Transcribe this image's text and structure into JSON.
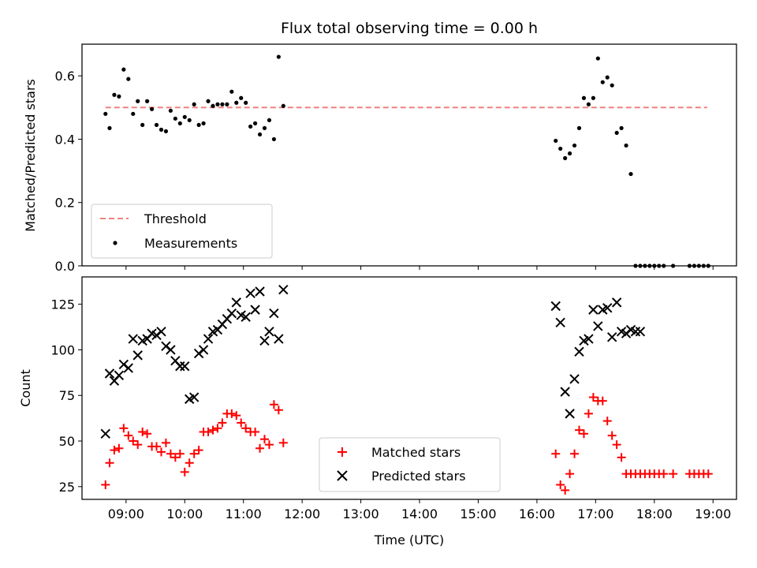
{
  "chart_data": [
    {
      "type": "scatter",
      "title": "Flux total observing time = 0.00 h",
      "xlabel": "",
      "ylabel": "Matched/Predicted stars",
      "x_unit": "hours UTC",
      "xlim": [
        8.25,
        19.4
      ],
      "ylim": [
        0.0,
        0.7
      ],
      "yticks": [
        0.0,
        0.2,
        0.4,
        0.6
      ],
      "ytick_labels": [
        "0.0",
        "0.2",
        "0.4",
        "0.6"
      ],
      "legend": "lower-left",
      "series": [
        {
          "name": "Threshold",
          "style": "dashed-line",
          "color": "#f08080",
          "x": [
            8.65,
            18.9
          ],
          "y": [
            0.5,
            0.5
          ]
        },
        {
          "name": "Measurements",
          "style": "dot",
          "color": "#000000",
          "x": [
            8.65,
            8.72,
            8.8,
            8.88,
            8.96,
            9.04,
            9.12,
            9.2,
            9.28,
            9.36,
            9.44,
            9.52,
            9.6,
            9.68,
            9.76,
            9.84,
            9.92,
            10.0,
            10.08,
            10.16,
            10.24,
            10.32,
            10.4,
            10.48,
            10.56,
            10.64,
            10.72,
            10.8,
            10.88,
            10.96,
            11.04,
            11.12,
            11.2,
            11.28,
            11.36,
            11.44,
            11.52,
            11.6,
            11.68,
            16.32,
            16.4,
            16.48,
            16.56,
            16.64,
            16.72,
            16.8,
            16.88,
            16.96,
            17.04,
            17.12,
            17.2,
            17.28,
            17.36,
            17.44,
            17.52,
            17.6,
            17.68,
            17.76,
            17.84,
            17.92,
            18.0,
            18.08,
            18.16,
            18.32,
            18.6,
            18.68,
            18.76,
            18.84,
            18.92
          ],
          "y": [
            0.48,
            0.435,
            0.54,
            0.535,
            0.62,
            0.59,
            0.48,
            0.52,
            0.445,
            0.52,
            0.495,
            0.445,
            0.43,
            0.425,
            0.49,
            0.465,
            0.45,
            0.47,
            0.46,
            0.51,
            0.445,
            0.45,
            0.52,
            0.505,
            0.51,
            0.51,
            0.51,
            0.55,
            0.515,
            0.53,
            0.515,
            0.44,
            0.45,
            0.415,
            0.435,
            0.46,
            0.4,
            0.66,
            0.505,
            0.395,
            0.37,
            0.34,
            0.355,
            0.38,
            0.435,
            0.53,
            0.51,
            0.53,
            0.655,
            0.58,
            0.595,
            0.57,
            0.42,
            0.435,
            0.38,
            0.29,
            0.0,
            0.0,
            0.0,
            0.0,
            0.0,
            0.0,
            0.0,
            0.0,
            0.0,
            0.0,
            0.0,
            0.0,
            0.0
          ]
        }
      ]
    },
    {
      "type": "scatter",
      "title": "",
      "xlabel": "Time (UTC)",
      "ylabel": "Count",
      "x_unit": "hours UTC",
      "xlim": [
        8.25,
        19.4
      ],
      "ylim": [
        18,
        140
      ],
      "xticks": [
        9,
        10,
        11,
        12,
        13,
        14,
        15,
        16,
        17,
        18,
        19
      ],
      "xtick_labels": [
        "09:00",
        "10:00",
        "11:00",
        "12:00",
        "13:00",
        "14:00",
        "15:00",
        "16:00",
        "17:00",
        "18:00",
        "19:00"
      ],
      "yticks": [
        25,
        50,
        75,
        100,
        125
      ],
      "ytick_labels": [
        "25",
        "50",
        "75",
        "100",
        "125"
      ],
      "legend": "lower-center",
      "series": [
        {
          "name": "Matched stars",
          "style": "plus",
          "color": "#ff0000",
          "x": [
            8.65,
            8.72,
            8.8,
            8.88,
            8.96,
            9.04,
            9.12,
            9.2,
            9.28,
            9.36,
            9.44,
            9.52,
            9.6,
            9.68,
            9.76,
            9.84,
            9.92,
            10.0,
            10.08,
            10.16,
            10.24,
            10.32,
            10.4,
            10.48,
            10.56,
            10.64,
            10.72,
            10.8,
            10.88,
            10.96,
            11.04,
            11.12,
            11.2,
            11.28,
            11.36,
            11.44,
            11.52,
            11.6,
            11.68,
            16.32,
            16.4,
            16.48,
            16.56,
            16.64,
            16.72,
            16.8,
            16.88,
            16.96,
            17.04,
            17.12,
            17.2,
            17.28,
            17.36,
            17.44,
            17.52,
            17.6,
            17.68,
            17.76,
            17.84,
            17.92,
            18.0,
            18.08,
            18.16,
            18.32,
            18.6,
            18.68,
            18.76,
            18.84,
            18.92
          ],
          "y": [
            26,
            38,
            45,
            46,
            57,
            53,
            50,
            48,
            55,
            54,
            47,
            47,
            44,
            49,
            43,
            41,
            43,
            33,
            38,
            43,
            45,
            55,
            55,
            56,
            57,
            60,
            65,
            65,
            64,
            60,
            57,
            55,
            55,
            46,
            51,
            48,
            70,
            67,
            49,
            43,
            26,
            23,
            32,
            43,
            56,
            54,
            65,
            74,
            72,
            72,
            61,
            53,
            48,
            41,
            32,
            32,
            32,
            32,
            32,
            32,
            32,
            32,
            32,
            32,
            32,
            32,
            32,
            32,
            32
          ]
        },
        {
          "name": "Predicted stars",
          "style": "cross",
          "color": "#000000",
          "x": [
            8.65,
            8.72,
            8.8,
            8.88,
            8.96,
            9.04,
            9.12,
            9.2,
            9.28,
            9.36,
            9.44,
            9.52,
            9.6,
            9.68,
            9.76,
            9.84,
            9.92,
            10.0,
            10.08,
            10.16,
            10.24,
            10.32,
            10.4,
            10.48,
            10.56,
            10.64,
            10.72,
            10.8,
            10.88,
            10.96,
            11.04,
            11.12,
            11.2,
            11.28,
            11.36,
            11.44,
            11.52,
            11.6,
            11.68,
            16.32,
            16.4,
            16.48,
            16.56,
            16.64,
            16.72,
            16.8,
            16.88,
            16.96,
            17.04,
            17.12,
            17.2,
            17.28,
            17.36,
            17.44,
            17.52,
            17.6,
            17.68,
            17.76
          ],
          "y": [
            54,
            87,
            83,
            86,
            92,
            90,
            106,
            97,
            105,
            106,
            109,
            108,
            110,
            102,
            100,
            94,
            91,
            91,
            73,
            74,
            98,
            100,
            106,
            110,
            111,
            114,
            117,
            120,
            126,
            119,
            118,
            131,
            122,
            132,
            105,
            110,
            120,
            106,
            133,
            124,
            115,
            77,
            65,
            84,
            99,
            105,
            106,
            122,
            113,
            122,
            123,
            107,
            126,
            110,
            109,
            111,
            110,
            110
          ]
        }
      ]
    }
  ]
}
